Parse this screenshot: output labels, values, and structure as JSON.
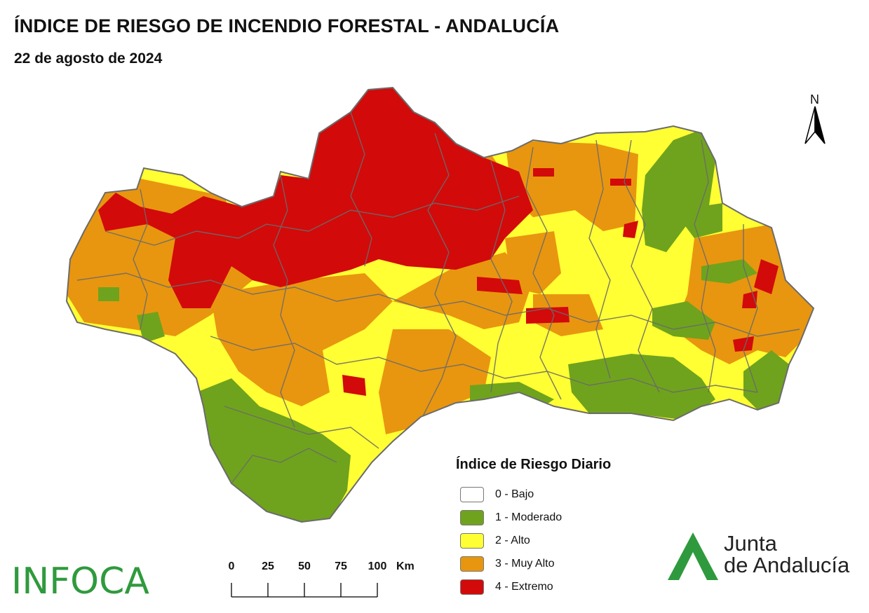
{
  "header": {
    "title": "ÍNDICE DE RIESGO DE INCENDIO FORESTAL - ANDALUCÍA",
    "date": "22 de agosto de 2024"
  },
  "north": {
    "label": "N"
  },
  "legend": {
    "title": "Índice de Riesgo Diario",
    "items": [
      {
        "label": "0 - Bajo",
        "color": "#ffffff"
      },
      {
        "label": "1 - Moderado",
        "color": "#6fa31d"
      },
      {
        "label": "2 - Alto",
        "color": "#ffff33"
      },
      {
        "label": "3 - Muy Alto",
        "color": "#e8960f"
      },
      {
        "label": "4 - Extremo",
        "color": "#d20a0a"
      }
    ]
  },
  "scale": {
    "ticks": [
      "0",
      "25",
      "50",
      "75",
      "100"
    ],
    "unit": "Km"
  },
  "logos": {
    "infoca": "INFOCA",
    "junta_line1": "Junta",
    "junta_line2": "de Andalucía",
    "junta_color": "#2f9a3d"
  },
  "colors": {
    "background": "#ffffff",
    "borders": "#6b6b6b"
  }
}
